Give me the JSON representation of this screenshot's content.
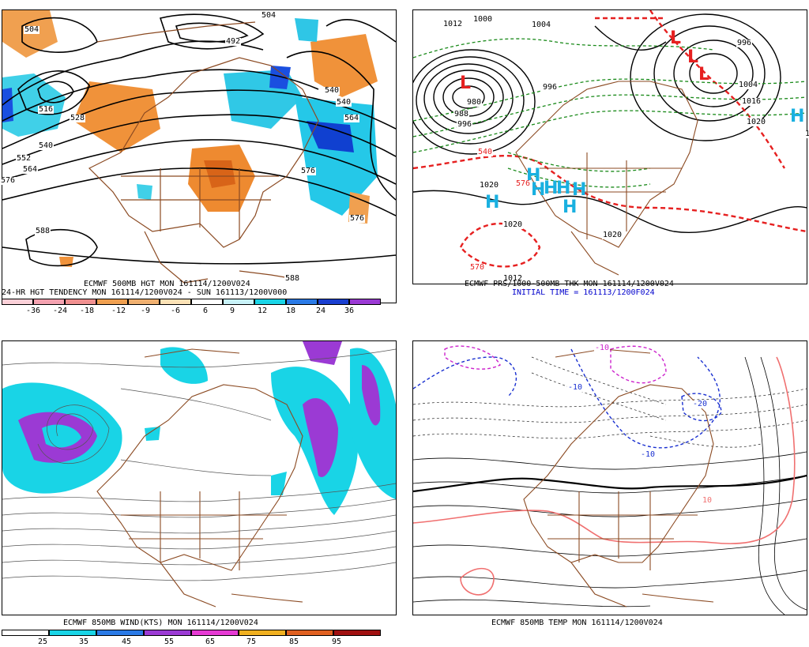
{
  "colors": {
    "brown_map": "#8b4a22",
    "orange_tend": "#f0923a",
    "cyan": "#19d4e6",
    "blue": "#0a3ad4",
    "purple_wind": "#9b3ad4",
    "red_low": "#e62020",
    "cyan_high": "#1ab0e0",
    "green_dash": "#1a8a1a"
  },
  "panel1": {
    "caption1": "ECMWF 500MB HGT MON 161114/1200V024",
    "caption2": "24-HR HGT TENDENCY MON 161114/1200V024 - SUN 161113/1200V000",
    "colorbar_ticks": [
      "-36",
      "-24",
      "-18",
      "-12",
      "-9",
      "-6",
      "6",
      "9",
      "12",
      "18",
      "24",
      "36"
    ],
    "contour_labels": [
      "504",
      "516",
      "504",
      "492",
      "492",
      "504",
      "516",
      "528",
      "540",
      "552",
      "564",
      "576",
      "516",
      "528",
      "540",
      "552",
      "564",
      "576",
      "576",
      "588",
      "588"
    ]
  },
  "panel2": {
    "caption1": "ECMWF PRS/1000-500MB THK MON 161114/1200V024",
    "caption2": "INITIAL TIME = 161113/1200F024",
    "lows": [
      "L",
      "L",
      "L",
      "L"
    ],
    "highs": [
      "H",
      "H",
      "H",
      "H",
      "H",
      "H",
      "H",
      "H"
    ],
    "labels": [
      "1012",
      "1000",
      "996",
      "1004",
      "996",
      "996",
      "980",
      "988",
      "996",
      "1004",
      "1016",
      "1020",
      "1028",
      "1020",
      "1020",
      "1020",
      "540",
      "570",
      "576",
      "1012"
    ]
  },
  "panel3": {
    "caption1": "ECMWF 850MB WIND(KTS) MON 161114/1200V024",
    "colorbar_ticks": [
      "25",
      "35",
      "45",
      "55",
      "65",
      "75",
      "85",
      "95"
    ]
  },
  "panel4": {
    "caption1": "ECMWF 850MB TEMP MON 161114/1200V024",
    "labels": [
      "-10",
      "-20",
      "-10",
      "0",
      "-10",
      "-20",
      "10"
    ]
  }
}
